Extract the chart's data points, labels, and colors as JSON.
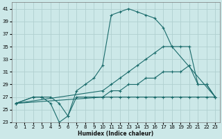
{
  "xlabel": "Humidex (Indice chaleur)",
  "xlim": [
    -0.5,
    23.5
  ],
  "ylim": [
    23,
    42
  ],
  "yticks": [
    23,
    25,
    27,
    29,
    31,
    33,
    35,
    37,
    39,
    41
  ],
  "xticks": [
    0,
    1,
    2,
    3,
    4,
    5,
    6,
    7,
    8,
    9,
    10,
    11,
    12,
    13,
    14,
    15,
    16,
    17,
    18,
    19,
    20,
    21,
    22,
    23
  ],
  "bg_color": "#cce8e8",
  "grid_color": "#b0d0d0",
  "line_color": "#1a6b6b",
  "lines": [
    {
      "x": [
        0,
        2,
        3,
        4,
        5,
        6,
        7,
        8,
        9,
        10,
        11,
        12,
        13,
        14,
        15,
        16,
        17,
        18,
        23
      ],
      "y": [
        26,
        27,
        27,
        27,
        26,
        24,
        28,
        29,
        30,
        32,
        40,
        40.5,
        41,
        40.5,
        40,
        39.5,
        38,
        35,
        27
      ]
    },
    {
      "x": [
        0,
        10,
        11,
        12,
        13,
        14,
        15,
        16,
        17,
        18,
        19,
        20,
        21,
        22,
        23
      ],
      "y": [
        26,
        28,
        29,
        30,
        31,
        32,
        33,
        34,
        35,
        35,
        35,
        35,
        29,
        29,
        27
      ]
    },
    {
      "x": [
        0,
        10,
        11,
        12,
        13,
        14,
        15,
        16,
        17,
        18,
        19,
        20,
        21,
        22,
        23
      ],
      "y": [
        26,
        27,
        28,
        28,
        29,
        29,
        30,
        30,
        31,
        31,
        31,
        32,
        29,
        29,
        27
      ]
    },
    {
      "x": [
        0,
        2,
        3,
        4,
        5,
        6,
        7,
        8,
        9,
        10,
        11,
        12,
        13,
        14,
        15,
        16,
        17,
        18,
        19,
        20,
        21,
        22,
        23
      ],
      "y": [
        26,
        27,
        27,
        26,
        23,
        24,
        27,
        27,
        27,
        27,
        27,
        27,
        27,
        27,
        27,
        27,
        27,
        27,
        27,
        27,
        27,
        27,
        27
      ]
    }
  ]
}
